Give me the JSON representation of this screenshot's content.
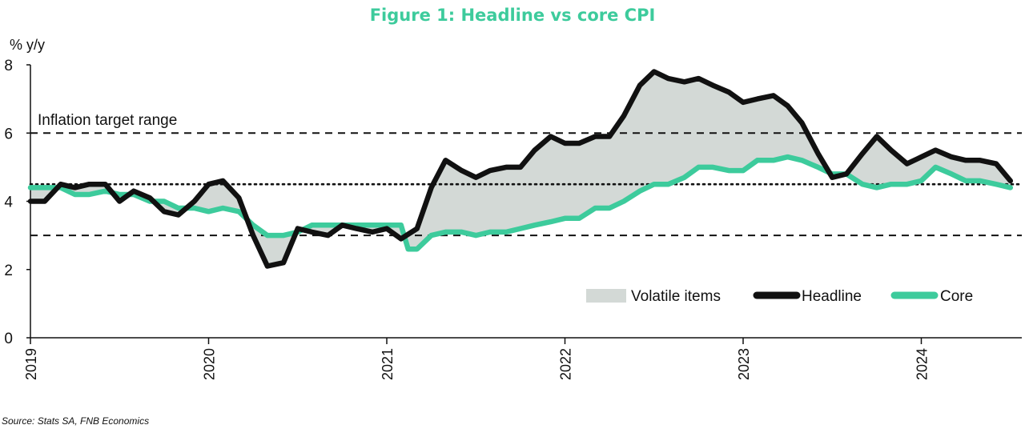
{
  "chart_data": {
    "type": "line",
    "title": "Figure 1: Headline vs core CPI",
    "ylabel": "% y/y",
    "source": "Source: Stats SA, FNB Economics",
    "ylim": [
      0,
      8
    ],
    "yticks": [
      "0",
      "2",
      "4",
      "6",
      "8"
    ],
    "x_start": 2019.0,
    "x_end": 2024.5,
    "xticks": [
      "2019",
      "2020",
      "2021",
      "2022",
      "2023",
      "2024"
    ],
    "annotation": "Inflation target range",
    "reference_lines": {
      "target_low": 3,
      "target_high": 6,
      "target_mid": 4.5
    },
    "legend": {
      "position": "bottom-right",
      "items": [
        "Volatile items",
        "Headline",
        "Core"
      ]
    },
    "colors": {
      "headline": "#111111",
      "core": "#3DCB9C",
      "volatile_fill": "#D3D9D6",
      "title": "#3DCB9C",
      "axis": "#111111"
    },
    "series": [
      {
        "name": "Headline",
        "points": [
          [
            2019.0,
            4.0
          ],
          [
            2019.08,
            4.0
          ],
          [
            2019.17,
            4.5
          ],
          [
            2019.25,
            4.4
          ],
          [
            2019.33,
            4.5
          ],
          [
            2019.42,
            4.5
          ],
          [
            2019.5,
            4.0
          ],
          [
            2019.58,
            4.3
          ],
          [
            2019.67,
            4.1
          ],
          [
            2019.75,
            3.7
          ],
          [
            2019.83,
            3.6
          ],
          [
            2019.92,
            4.0
          ],
          [
            2020.0,
            4.5
          ],
          [
            2020.08,
            4.6
          ],
          [
            2020.17,
            4.1
          ],
          [
            2020.25,
            3.0
          ],
          [
            2020.33,
            2.1
          ],
          [
            2020.42,
            2.2
          ],
          [
            2020.5,
            3.2
          ],
          [
            2020.58,
            3.1
          ],
          [
            2020.67,
            3.0
          ],
          [
            2020.75,
            3.3
          ],
          [
            2020.83,
            3.2
          ],
          [
            2020.92,
            3.1
          ],
          [
            2021.0,
            3.2
          ],
          [
            2021.08,
            2.9
          ],
          [
            2021.17,
            3.2
          ],
          [
            2021.25,
            4.4
          ],
          [
            2021.33,
            5.2
          ],
          [
            2021.42,
            4.9
          ],
          [
            2021.5,
            4.7
          ],
          [
            2021.58,
            4.9
          ],
          [
            2021.67,
            5.0
          ],
          [
            2021.75,
            5.0
          ],
          [
            2021.83,
            5.5
          ],
          [
            2021.92,
            5.9
          ],
          [
            2022.0,
            5.7
          ],
          [
            2022.08,
            5.7
          ],
          [
            2022.17,
            5.9
          ],
          [
            2022.25,
            5.9
          ],
          [
            2022.33,
            6.5
          ],
          [
            2022.42,
            7.4
          ],
          [
            2022.5,
            7.8
          ],
          [
            2022.58,
            7.6
          ],
          [
            2022.67,
            7.5
          ],
          [
            2022.75,
            7.6
          ],
          [
            2022.83,
            7.4
          ],
          [
            2022.92,
            7.2
          ],
          [
            2023.0,
            6.9
          ],
          [
            2023.08,
            7.0
          ],
          [
            2023.17,
            7.1
          ],
          [
            2023.25,
            6.8
          ],
          [
            2023.33,
            6.3
          ],
          [
            2023.42,
            5.4
          ],
          [
            2023.5,
            4.7
          ],
          [
            2023.58,
            4.8
          ],
          [
            2023.67,
            5.4
          ],
          [
            2023.75,
            5.9
          ],
          [
            2023.83,
            5.5
          ],
          [
            2023.92,
            5.1
          ],
          [
            2024.0,
            5.3
          ],
          [
            2024.08,
            5.5
          ],
          [
            2024.17,
            5.3
          ],
          [
            2024.25,
            5.2
          ],
          [
            2024.33,
            5.2
          ],
          [
            2024.42,
            5.1
          ],
          [
            2024.5,
            4.6
          ]
        ]
      },
      {
        "name": "Core",
        "points": [
          [
            2019.0,
            4.4
          ],
          [
            2019.08,
            4.4
          ],
          [
            2019.17,
            4.4
          ],
          [
            2019.25,
            4.2
          ],
          [
            2019.33,
            4.2
          ],
          [
            2019.42,
            4.3
          ],
          [
            2019.5,
            4.2
          ],
          [
            2019.58,
            4.2
          ],
          [
            2019.67,
            4.0
          ],
          [
            2019.75,
            4.0
          ],
          [
            2019.83,
            3.8
          ],
          [
            2019.92,
            3.8
          ],
          [
            2020.0,
            3.7
          ],
          [
            2020.08,
            3.8
          ],
          [
            2020.17,
            3.7
          ],
          [
            2020.25,
            3.3
          ],
          [
            2020.33,
            3.0
          ],
          [
            2020.42,
            3.0
          ],
          [
            2020.5,
            3.1
          ],
          [
            2020.58,
            3.3
          ],
          [
            2020.67,
            3.3
          ],
          [
            2020.75,
            3.3
          ],
          [
            2020.83,
            3.3
          ],
          [
            2020.92,
            3.3
          ],
          [
            2021.0,
            3.3
          ],
          [
            2021.08,
            3.3
          ],
          [
            2021.12,
            2.6
          ],
          [
            2021.17,
            2.6
          ],
          [
            2021.25,
            3.0
          ],
          [
            2021.33,
            3.1
          ],
          [
            2021.42,
            3.1
          ],
          [
            2021.5,
            3.0
          ],
          [
            2021.58,
            3.1
          ],
          [
            2021.67,
            3.1
          ],
          [
            2021.75,
            3.2
          ],
          [
            2021.83,
            3.3
          ],
          [
            2021.92,
            3.4
          ],
          [
            2022.0,
            3.5
          ],
          [
            2022.08,
            3.5
          ],
          [
            2022.17,
            3.8
          ],
          [
            2022.25,
            3.8
          ],
          [
            2022.33,
            4.0
          ],
          [
            2022.42,
            4.3
          ],
          [
            2022.5,
            4.5
          ],
          [
            2022.58,
            4.5
          ],
          [
            2022.67,
            4.7
          ],
          [
            2022.75,
            5.0
          ],
          [
            2022.83,
            5.0
          ],
          [
            2022.92,
            4.9
          ],
          [
            2023.0,
            4.9
          ],
          [
            2023.08,
            5.2
          ],
          [
            2023.17,
            5.2
          ],
          [
            2023.25,
            5.3
          ],
          [
            2023.33,
            5.2
          ],
          [
            2023.42,
            5.0
          ],
          [
            2023.5,
            4.8
          ],
          [
            2023.58,
            4.8
          ],
          [
            2023.67,
            4.5
          ],
          [
            2023.75,
            4.4
          ],
          [
            2023.83,
            4.5
          ],
          [
            2023.92,
            4.5
          ],
          [
            2024.0,
            4.6
          ],
          [
            2024.08,
            5.0
          ],
          [
            2024.17,
            4.8
          ],
          [
            2024.25,
            4.6
          ],
          [
            2024.33,
            4.6
          ],
          [
            2024.42,
            4.5
          ],
          [
            2024.5,
            4.4
          ]
        ]
      }
    ]
  }
}
